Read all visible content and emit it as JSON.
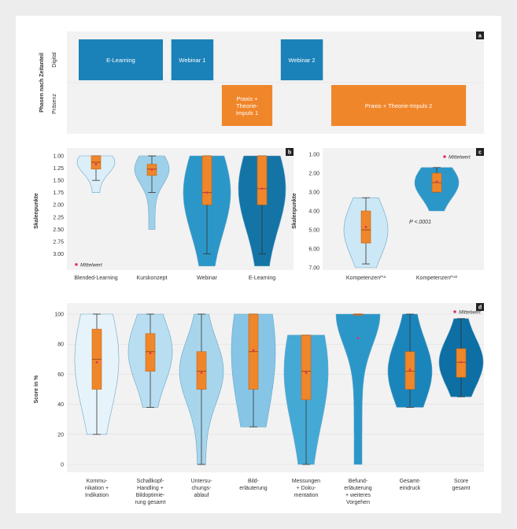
{
  "panel_a": {
    "letter": "a",
    "ylabel": "Phasen nach Zeitanteil",
    "rows": [
      "Digital",
      "Präsenz"
    ],
    "colors": {
      "digital": "#1a82b8",
      "praesenz": "#f0862a"
    },
    "blocks": [
      {
        "label": [
          "E-Learning"
        ],
        "row": "Digital",
        "start": 0,
        "end": 2
      },
      {
        "label": [
          "Webinar 1"
        ],
        "row": "Digital",
        "start": 2.2,
        "end": 3.2
      },
      {
        "label": [
          "Praxis +",
          "Theorie-",
          "Impuls 1"
        ],
        "row": "Präsenz",
        "start": 3.4,
        "end": 4.6
      },
      {
        "label": [
          "Webinar 2"
        ],
        "row": "Digital",
        "start": 4.8,
        "end": 5.8
      },
      {
        "label": [
          "Praxis + Theorie-Impuls 2"
        ],
        "row": "Präsenz",
        "start": 6.0,
        "end": 9.2
      }
    ]
  },
  "chart_data": [
    {
      "panel": "b",
      "type": "violin",
      "ylabel": "Skalenpunkte",
      "ylim": [
        1.0,
        3.25
      ],
      "y_inverted": true,
      "yticks": [
        "1.00",
        "1.25",
        "1.50",
        "1.75",
        "2.00",
        "2.25",
        "2.50",
        "2.75",
        "3.00"
      ],
      "legend": "Mittelwert",
      "categories": [
        "Blended-Learning",
        "Kurskonzept",
        "Webinar",
        "E-Learning"
      ],
      "series": [
        {
          "q1": 1.0,
          "median": 1.13,
          "q3": 1.27,
          "whisker_low": 1.0,
          "whisker_high": 1.5,
          "mean": 1.17,
          "min": 1.0,
          "max": 1.75,
          "color": "#dceef8"
        },
        {
          "q1": 1.17,
          "median": 1.27,
          "q3": 1.4,
          "whisker_low": 1.0,
          "whisker_high": 1.75,
          "mean": 1.28,
          "min": 1.0,
          "max": 2.5,
          "color": "#9fd0ea"
        },
        {
          "q1": 1.0,
          "median": 1.75,
          "q3": 2.0,
          "whisker_low": 1.0,
          "whisker_high": 3.0,
          "mean": 1.75,
          "min": 1.0,
          "max": 3.25,
          "color": "#2b97c8"
        },
        {
          "q1": 1.0,
          "median": 1.67,
          "q3": 2.0,
          "whisker_low": 1.0,
          "whisker_high": 3.0,
          "mean": 1.67,
          "min": 1.0,
          "max": 3.25,
          "color": "#1474a6"
        }
      ]
    },
    {
      "panel": "c",
      "type": "violin",
      "ylabel": "Skalenpunkte",
      "ylim": [
        1.0,
        7.0
      ],
      "y_inverted": true,
      "yticks": [
        "1.00",
        "2.00",
        "3.00",
        "4.00",
        "5.00",
        "6.00",
        "7.00"
      ],
      "legend": "Mittelwert",
      "annotation": "P <.0001",
      "categories": [
        "Kompetenzen",
        "Kompetenzen"
      ],
      "category_superscripts": [
        "Pra",
        "Post"
      ],
      "series": [
        {
          "q1": 4.0,
          "median": 5.0,
          "q3": 5.7,
          "whisker_low": 3.3,
          "whisker_high": 6.8,
          "mean": 4.85,
          "min": 3.3,
          "max": 7.0,
          "color": "#cce7f5"
        },
        {
          "q1": 2.0,
          "median": 2.5,
          "q3": 3.0,
          "whisker_low": 1.7,
          "whisker_high": 3.0,
          "mean": 2.45,
          "min": 1.7,
          "max": 4.0,
          "color": "#2b97c8"
        }
      ]
    },
    {
      "panel": "d",
      "type": "violin",
      "ylabel": "Score in %",
      "ylim": [
        0,
        100
      ],
      "yticks": [
        "0",
        "20",
        "40",
        "60",
        "80",
        "100"
      ],
      "legend": "Mittelwert",
      "categories": [
        [
          "Kommu-",
          "nikation +",
          "Indikation"
        ],
        [
          "Schallkopf-",
          "Handling +",
          "Bildoptimie-",
          "rung gesamt"
        ],
        [
          "Untersu-",
          "chungs-",
          "ablauf"
        ],
        [
          "Bild-",
          "erläuterung"
        ],
        [
          "Messungen",
          "+ Doku-",
          "mentation"
        ],
        [
          "Befund-",
          "erläuterung",
          "+ weiteres",
          "Vorgehen"
        ],
        [
          "Gesamt-",
          "eindruck"
        ],
        [
          "Score",
          "gesamt"
        ]
      ],
      "series": [
        {
          "q1": 50,
          "median": 70,
          "q3": 90,
          "whisker_low": 20,
          "whisker_high": 100,
          "mean": 68,
          "min": 20,
          "max": 100,
          "color": "#e6f3fa"
        },
        {
          "q1": 62,
          "median": 75,
          "q3": 87,
          "whisker_low": 38,
          "whisker_high": 100,
          "mean": 74,
          "min": 38,
          "max": 100,
          "color": "#b9def1"
        },
        {
          "q1": 50,
          "median": 62,
          "q3": 75,
          "whisker_low": 0,
          "whisker_high": 100,
          "mean": 61,
          "min": 0,
          "max": 100,
          "color": "#a7d5ec"
        },
        {
          "q1": 50,
          "median": 75,
          "q3": 100,
          "whisker_low": 25,
          "whisker_high": 100,
          "mean": 76,
          "min": 25,
          "max": 100,
          "color": "#86c5e6"
        },
        {
          "q1": 43,
          "median": 62,
          "q3": 86,
          "whisker_low": 0,
          "whisker_high": 86,
          "mean": 61,
          "min": 0,
          "max": 86,
          "color": "#45a9d6"
        },
        {
          "q1": 100,
          "median": 100,
          "q3": 100,
          "whisker_low": 100,
          "whisker_high": 100,
          "mean": 84,
          "min": 0,
          "max": 100,
          "color": "#2b97c8"
        },
        {
          "q1": 50,
          "median": 62,
          "q3": 75,
          "whisker_low": 38,
          "whisker_high": 100,
          "mean": 63,
          "min": 38,
          "max": 100,
          "color": "#1a85bb"
        },
        {
          "q1": 58,
          "median": 68,
          "q3": 77,
          "whisker_low": 45,
          "whisker_high": 97,
          "mean": 68,
          "min": 45,
          "max": 97,
          "color": "#0d6fa3"
        }
      ]
    }
  ]
}
